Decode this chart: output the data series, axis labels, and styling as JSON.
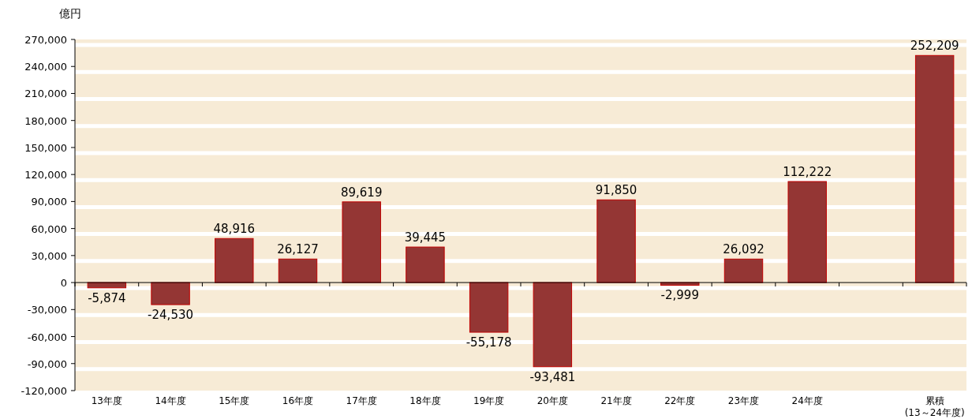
{
  "chart_data": {
    "type": "bar",
    "ylabel": "億円",
    "categories": [
      "13年度",
      "14年度",
      "15年度",
      "16年度",
      "17年度",
      "18年度",
      "19年度",
      "20年度",
      "21年度",
      "22年度",
      "23年度",
      "24年度",
      null,
      "累積\n(13～24年度)"
    ],
    "series": [
      {
        "color": "#943634",
        "values": [
          -5874,
          -24530,
          48916,
          26127,
          89619,
          39445,
          -55178,
          -93481,
          91850,
          -2999,
          26092,
          112222,
          null,
          252209
        ],
        "value_labels": [
          "-5,874",
          "-24,530",
          "48,916",
          "26,127",
          "89,619",
          "39,445",
          "-55,178",
          "-93,481",
          "91,850",
          "-2,999",
          "26,092",
          "112,222",
          null,
          "252,209"
        ]
      }
    ],
    "ylim": [
      -120000,
      270000
    ],
    "yticks": [
      {
        "value": -120000,
        "label": "-120,000"
      },
      {
        "value": -90000,
        "label": "-90,000"
      },
      {
        "value": -60000,
        "label": "-60,000"
      },
      {
        "value": -30000,
        "label": "-30,000"
      },
      0,
      {
        "value": 30000,
        "label": "30,000"
      },
      {
        "value": 60000,
        "label": "60,000"
      },
      {
        "value": 90000,
        "label": "90,000"
      },
      {
        "value": 120000,
        "label": "120,000"
      },
      {
        "value": 150000,
        "label": "150,000"
      },
      {
        "value": 180000,
        "label": "180,000"
      },
      {
        "value": 210000,
        "label": "210,000"
      },
      {
        "value": 240000,
        "label": "240,000"
      },
      {
        "value": 270000,
        "label": "270,000"
      }
    ],
    "grid": "y"
  }
}
